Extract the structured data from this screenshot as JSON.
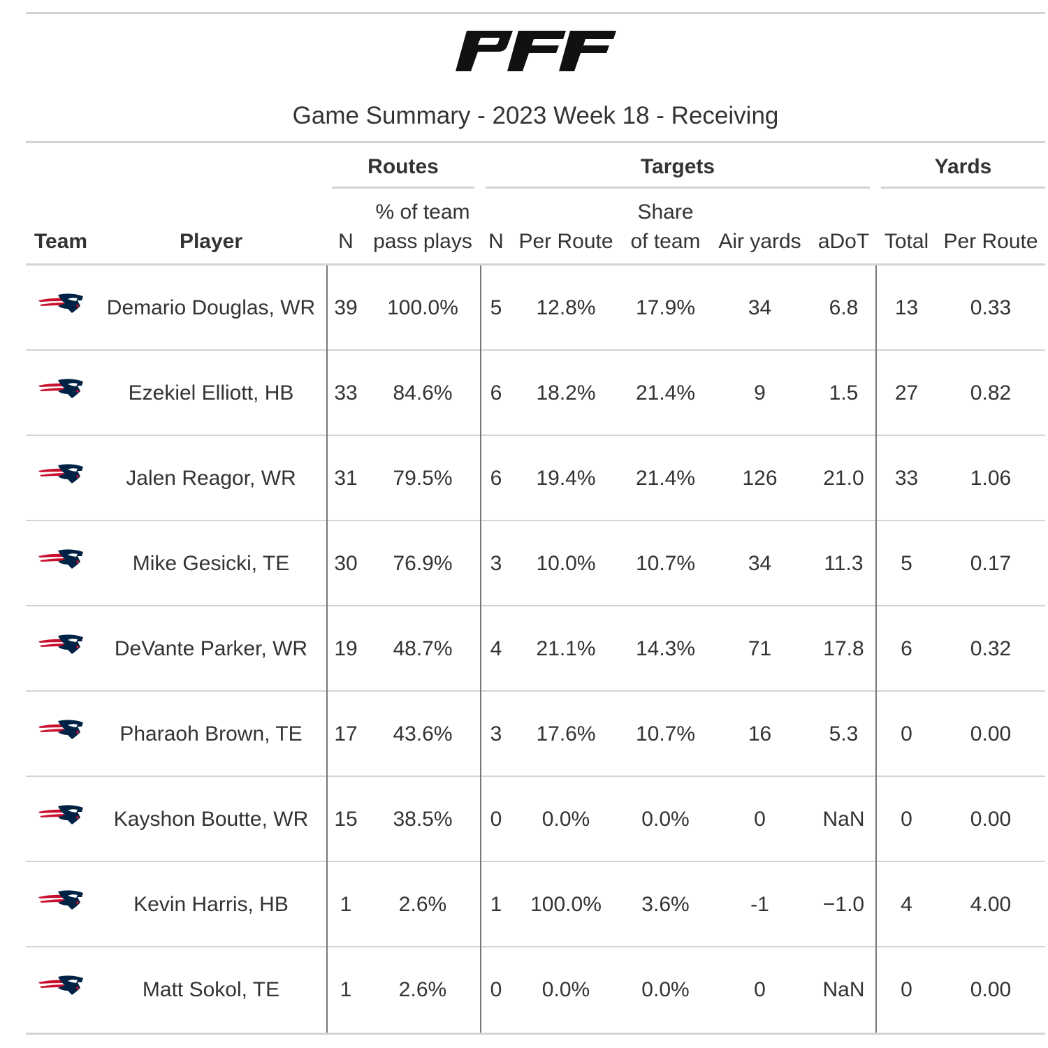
{
  "header": {
    "logo_text": "PFF",
    "subtitle": "Game Summary - 2023 Week 18 - Receiving"
  },
  "spanners": {
    "routes": "Routes",
    "targets": "Targets",
    "yards": "Yards"
  },
  "columns": {
    "team": "Team",
    "player": "Player",
    "routes_n": "N",
    "routes_pct_line1": "% of team",
    "routes_pct_line2": "pass plays",
    "targets_n": "N",
    "targets_per_route": "Per Route",
    "share_line1": "Share",
    "share_line2": "of team",
    "air_yards": "Air yards",
    "adot": "aDoT",
    "yards_total": "Total",
    "yards_per_route": "Per Route"
  },
  "team_logo": "patriots-logo",
  "rows": [
    {
      "player": "Demario Douglas, WR",
      "routes_n": "39",
      "routes_pct": "100.0%",
      "targets_n": "5",
      "targets_per_route": "12.8%",
      "share": "17.9%",
      "air_yards": "34",
      "adot": "6.8",
      "yards_total": "13",
      "yards_per_route": "0.33"
    },
    {
      "player": "Ezekiel Elliott, HB",
      "routes_n": "33",
      "routes_pct": "84.6%",
      "targets_n": "6",
      "targets_per_route": "18.2%",
      "share": "21.4%",
      "air_yards": "9",
      "adot": "1.5",
      "yards_total": "27",
      "yards_per_route": "0.82"
    },
    {
      "player": "Jalen Reagor, WR",
      "routes_n": "31",
      "routes_pct": "79.5%",
      "targets_n": "6",
      "targets_per_route": "19.4%",
      "share": "21.4%",
      "air_yards": "126",
      "adot": "21.0",
      "yards_total": "33",
      "yards_per_route": "1.06"
    },
    {
      "player": "Mike Gesicki, TE",
      "routes_n": "30",
      "routes_pct": "76.9%",
      "targets_n": "3",
      "targets_per_route": "10.0%",
      "share": "10.7%",
      "air_yards": "34",
      "adot": "11.3",
      "yards_total": "5",
      "yards_per_route": "0.17"
    },
    {
      "player": "DeVante Parker, WR",
      "routes_n": "19",
      "routes_pct": "48.7%",
      "targets_n": "4",
      "targets_per_route": "21.1%",
      "share": "14.3%",
      "air_yards": "71",
      "adot": "17.8",
      "yards_total": "6",
      "yards_per_route": "0.32"
    },
    {
      "player": "Pharaoh Brown, TE",
      "routes_n": "17",
      "routes_pct": "43.6%",
      "targets_n": "3",
      "targets_per_route": "17.6%",
      "share": "10.7%",
      "air_yards": "16",
      "adot": "5.3",
      "yards_total": "0",
      "yards_per_route": "0.00"
    },
    {
      "player": "Kayshon Boutte, WR",
      "routes_n": "15",
      "routes_pct": "38.5%",
      "targets_n": "0",
      "targets_per_route": "0.0%",
      "share": "0.0%",
      "air_yards": "0",
      "adot": "NaN",
      "yards_total": "0",
      "yards_per_route": "0.00"
    },
    {
      "player": "Kevin Harris, HB",
      "routes_n": "1",
      "routes_pct": "2.6%",
      "targets_n": "1",
      "targets_per_route": "100.0%",
      "share": "3.6%",
      "air_yards": "-1",
      "adot": "−1.0",
      "yards_total": "4",
      "yards_per_route": "4.00"
    },
    {
      "player": "Matt Sokol, TE",
      "routes_n": "1",
      "routes_pct": "2.6%",
      "targets_n": "0",
      "targets_per_route": "0.0%",
      "share": "0.0%",
      "air_yards": "0",
      "adot": "NaN",
      "yards_total": "0",
      "yards_per_route": "0.00"
    }
  ]
}
